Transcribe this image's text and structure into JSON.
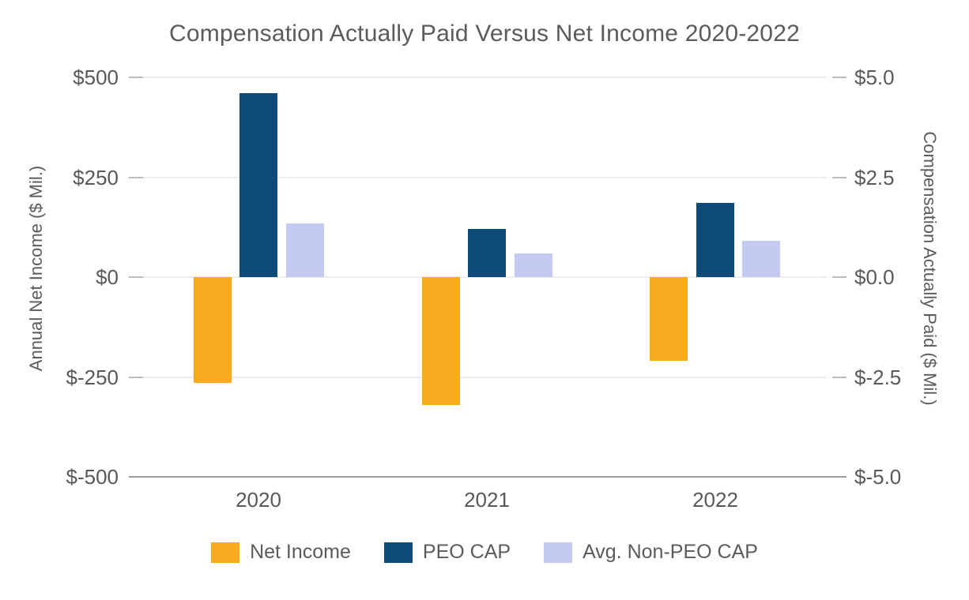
{
  "title": "Compensation Actually Paid Versus Net Income 2020-2022",
  "chart_data": {
    "type": "bar",
    "title": "Compensation Actually Paid Versus Net Income 2020-2022",
    "categories": [
      "2020",
      "2021",
      "2022"
    ],
    "series": [
      {
        "name": "Net Income",
        "axis": "left",
        "color": "#F8AB1E",
        "values": [
          -265,
          -320,
          -210
        ]
      },
      {
        "name": "PEO CAP",
        "axis": "right",
        "color": "#0C4A78",
        "values": [
          4.6,
          1.2,
          1.85
        ]
      },
      {
        "name": "Avg. Non-PEO CAP",
        "axis": "right",
        "color": "#C4CBF3",
        "values": [
          1.35,
          0.6,
          0.9
        ]
      }
    ],
    "left_axis": {
      "label": "Annual Net Income ($ Mil.)",
      "ticks": [
        "$500",
        "$250",
        "$0",
        "$-250",
        "$-500"
      ],
      "range": [
        -500,
        500
      ]
    },
    "right_axis": {
      "label": "Compensation Actually Paid ($ Mil.)",
      "ticks": [
        "$5.0",
        "$2.5",
        "$0.0",
        "$-2.5",
        "$-5.0"
      ],
      "range": [
        -5,
        5
      ]
    },
    "grid": true,
    "legend_position": "bottom",
    "colors": {
      "grid": "#ECECEC",
      "axis": "#9C9C9C",
      "tick": "#BDBDBD",
      "text": "#595959"
    }
  },
  "legend": {
    "items": [
      {
        "label": "Net Income",
        "color": "#F8AB1E"
      },
      {
        "label": "PEO CAP",
        "color": "#0C4A78"
      },
      {
        "label": "Avg. Non-PEO CAP",
        "color": "#C4CBF3"
      }
    ]
  }
}
